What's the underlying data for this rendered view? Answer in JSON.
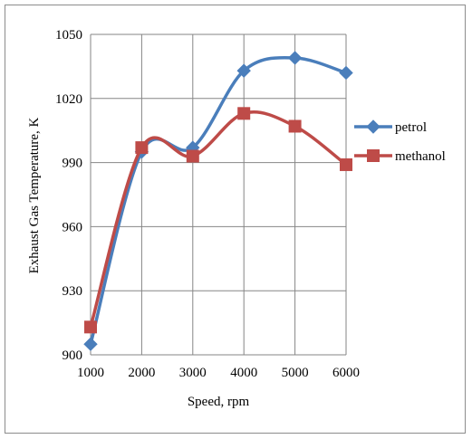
{
  "chart_data": {
    "type": "line",
    "x": [
      1000,
      2000,
      3000,
      4000,
      5000,
      6000
    ],
    "xlim": [
      1000,
      6000
    ],
    "ylim": [
      900,
      1050
    ],
    "yticks": [
      900,
      930,
      960,
      990,
      1020,
      1050
    ],
    "xticks": [
      1000,
      2000,
      3000,
      4000,
      5000,
      6000
    ],
    "xlabel": "Speed, rpm",
    "ylabel": "Exhaust Gas Temperature, K",
    "grid": true,
    "legend_position": "right",
    "smooth": true,
    "series": [
      {
        "name": "petrol",
        "color": "#4a7ebb",
        "marker": "diamond",
        "values": [
          905,
          995,
          997,
          1033,
          1039,
          1032
        ]
      },
      {
        "name": "methanol",
        "color": "#be4b48",
        "marker": "square",
        "values": [
          913,
          997,
          993,
          1013,
          1007,
          989
        ]
      }
    ]
  }
}
